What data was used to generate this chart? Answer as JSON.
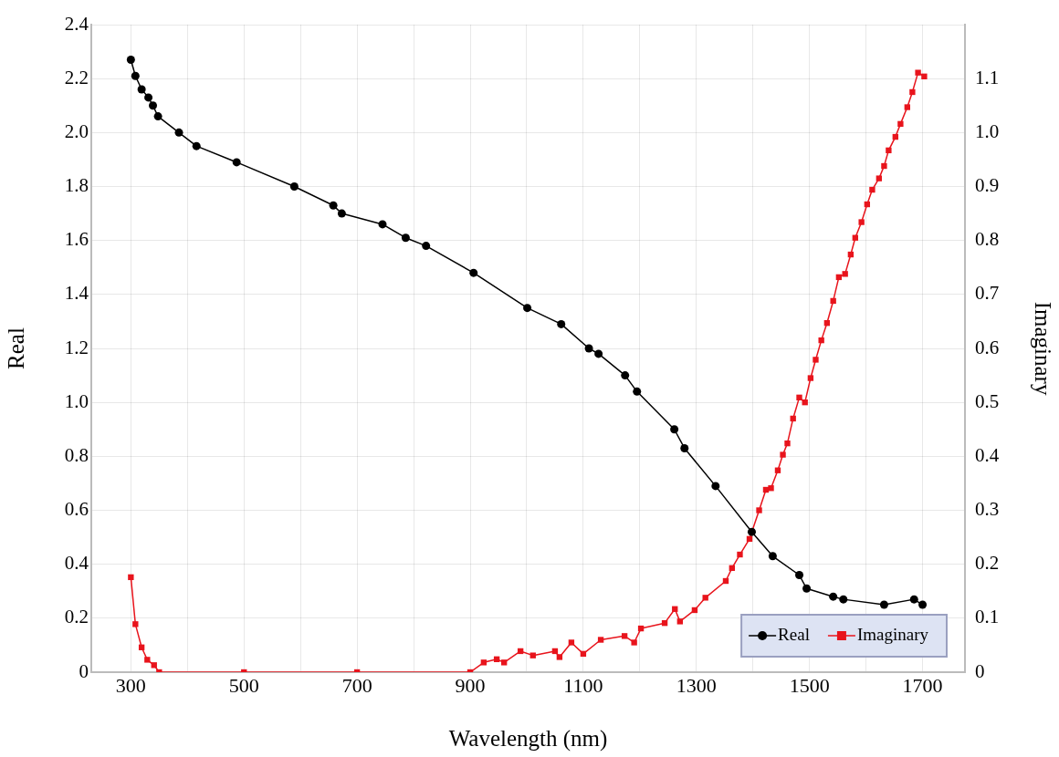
{
  "chart_data": {
    "type": "line",
    "xlabel": "Wavelength (nm)",
    "ylabel": "Real",
    "y2label": "Imaginary",
    "xlim": [
      230,
      1775
    ],
    "xticks": [
      300,
      {
        "value": 400,
        "label": null
      },
      500,
      {
        "value": 600,
        "label": null
      },
      700,
      {
        "value": 800,
        "label": null
      },
      900,
      {
        "value": 1000,
        "label": null
      },
      1100,
      {
        "value": 1200,
        "label": null
      },
      1300,
      {
        "value": 1400,
        "label": null
      },
      1500,
      {
        "value": 1600,
        "label": null
      },
      1700
    ],
    "ylim": [
      0,
      2.4
    ],
    "yticks": [
      0,
      0.2,
      0.4,
      0.6,
      0.8,
      {
        "value": 1,
        "label": "1.0"
      },
      1.2,
      1.4,
      1.6,
      1.8,
      {
        "value": 2,
        "label": "2.0"
      },
      2.2,
      2.4
    ],
    "y2lim": [
      0,
      1.2
    ],
    "y2ticks": [
      0,
      0.1,
      0.2,
      0.3,
      0.4,
      0.5,
      0.6,
      0.7,
      0.8,
      0.9,
      {
        "value": 1,
        "label": "1.0"
      },
      1.1
    ],
    "grid": true,
    "legend": "bottom right",
    "line_style": "solid",
    "series": [
      {
        "name": "Real",
        "color": "#000000",
        "marker": "circle",
        "x": [
          300,
          308,
          319,
          331,
          339,
          348,
          385,
          416,
          487,
          589,
          658,
          673,
          745,
          786,
          822,
          906,
          1001,
          1061,
          1110,
          1127,
          1174,
          1195,
          1261,
          1279,
          1334,
          1398,
          1435,
          1482,
          1495,
          1542,
          1560,
          1632,
          1685,
          1700
        ],
        "values": [
          2.27,
          2.21,
          2.16,
          2.13,
          2.1,
          2.06,
          2.0,
          1.95,
          1.89,
          1.8,
          1.73,
          1.7,
          1.66,
          1.61,
          1.58,
          1.48,
          1.35,
          1.29,
          1.2,
          1.18,
          1.1,
          1.04,
          0.9,
          0.83,
          0.69,
          0.52,
          0.43,
          0.36,
          0.31,
          0.28,
          0.27,
          0.25,
          0.27,
          0.25
        ]
      },
      {
        "name": "Imaginary",
        "color": "#e8141c",
        "marker": "square",
        "axis": "y2",
        "x": [
          300,
          308,
          319,
          329,
          341,
          350,
          500,
          700,
          900,
          924,
          947,
          960,
          989,
          1011,
          1050,
          1058,
          1079,
          1100,
          1131,
          1173,
          1190,
          1202,
          1244,
          1262,
          1271,
          1297,
          1316,
          1352,
          1363,
          1377,
          1394,
          1411,
          1423,
          1432,
          1444,
          1453,
          1461,
          1471,
          1482,
          1492,
          1502,
          1511,
          1521,
          1531,
          1542,
          1552,
          1563,
          1573,
          1581,
          1592,
          1602,
          1611,
          1623,
          1632,
          1640,
          1652,
          1661,
          1673,
          1682,
          1692,
          1703
        ],
        "values": [
          0.176,
          0.089,
          0.046,
          0.023,
          0.013,
          0,
          0,
          0,
          0,
          0.018,
          0.024,
          0.018,
          0.039,
          0.031,
          0.039,
          0.028,
          0.055,
          0.034,
          0.06,
          0.067,
          0.055,
          0.081,
          0.091,
          0.117,
          0.094,
          0.115,
          0.138,
          0.169,
          0.193,
          0.218,
          0.247,
          0.3,
          0.338,
          0.341,
          0.374,
          0.403,
          0.424,
          0.47,
          0.509,
          0.5,
          0.545,
          0.579,
          0.615,
          0.647,
          0.688,
          0.732,
          0.738,
          0.774,
          0.805,
          0.834,
          0.867,
          0.894,
          0.915,
          0.938,
          0.967,
          0.992,
          1.016,
          1.047,
          1.075,
          1.111,
          1.104
        ]
      }
    ]
  }
}
